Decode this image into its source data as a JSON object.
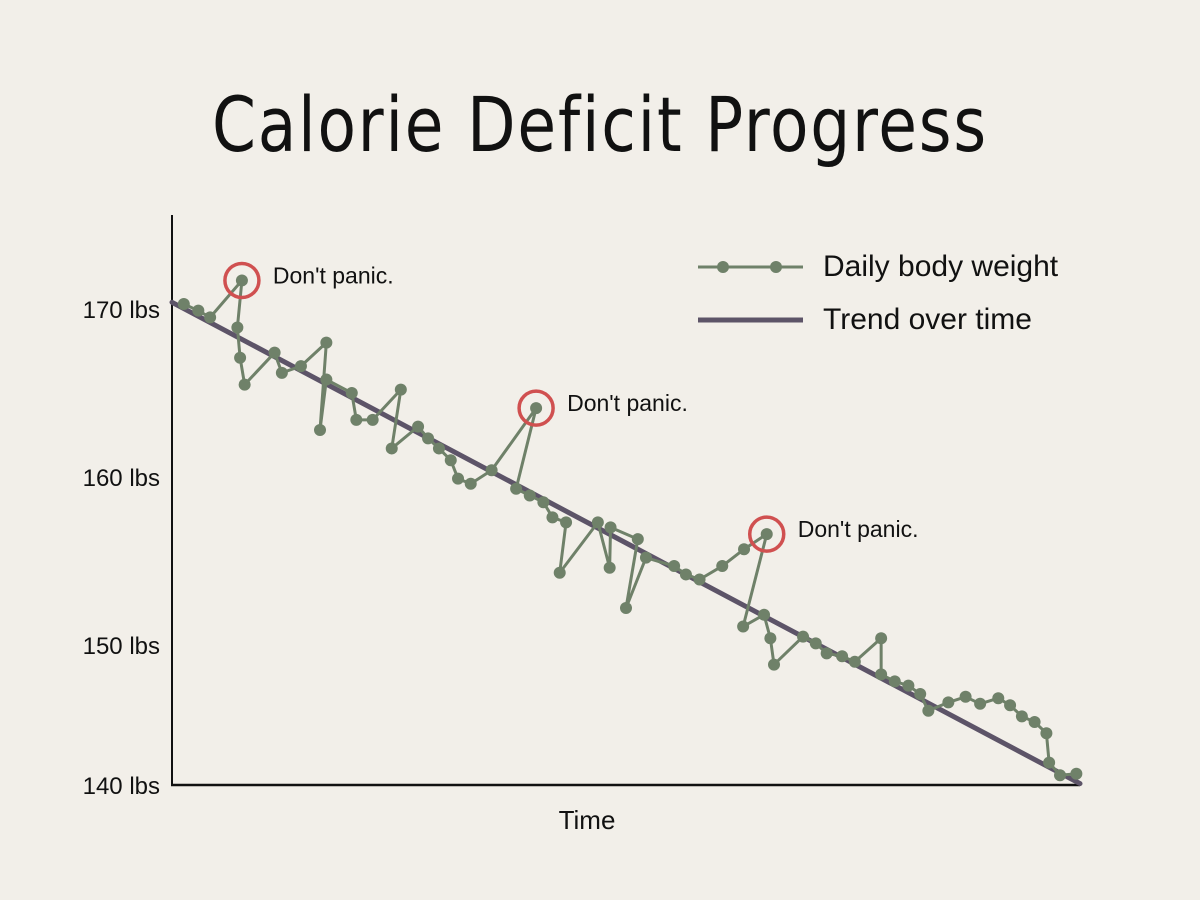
{
  "chart_data": {
    "type": "line",
    "title": "Calorie Deficit Progress",
    "xlabel": "Time",
    "ylabel": "",
    "x_tick_labels": [],
    "yticks": [
      {
        "value": 170,
        "label": "170 lbs"
      },
      {
        "value": 160,
        "label": "160 lbs"
      },
      {
        "value": 150,
        "label": "150 lbs"
      },
      {
        "value": 140,
        "label": "140 lbs"
      }
    ],
    "xlim": [
      0,
      100
    ],
    "grid": false,
    "legend_position": "top-right",
    "colors": {
      "background": "#f2efe9",
      "daily": "#6f8169",
      "trend": "#5d5468",
      "highlight": "#d05050"
    },
    "series": [
      {
        "name": "Daily body weight",
        "style": "line-with-markers",
        "x": [
          1.3,
          2.9,
          4.2,
          7.7,
          7.2,
          7.5,
          8.0,
          11.3,
          12.1,
          14.2,
          17.0,
          16.3,
          17.0,
          19.8,
          20.3,
          22.1,
          25.2,
          24.2,
          27.1,
          28.2,
          29.4,
          30.7,
          31.5,
          32.9,
          35.2,
          40.1,
          37.9,
          39.4,
          40.9,
          41.9,
          43.4,
          42.7,
          46.9,
          48.2,
          48.3,
          51.3,
          50.0,
          52.2,
          55.3,
          56.6,
          58.1,
          60.6,
          63.0,
          65.5,
          62.9,
          65.2,
          65.9,
          66.3,
          69.5,
          70.9,
          72.1,
          73.8,
          75.2,
          78.1,
          78.1,
          79.6,
          81.1,
          82.4,
          83.3,
          85.5,
          87.4,
          89.0,
          91.0,
          92.3,
          93.6,
          95.0,
          96.3,
          96.6,
          97.8,
          99.6
        ],
        "y": [
          170.3,
          169.9,
          169.5,
          171.7,
          168.9,
          167.1,
          165.5,
          167.4,
          166.2,
          166.6,
          168.0,
          162.8,
          165.8,
          165.0,
          163.4,
          163.4,
          165.2,
          161.7,
          163.0,
          162.3,
          161.7,
          161.0,
          159.9,
          159.6,
          160.4,
          164.1,
          159.3,
          158.9,
          158.5,
          157.6,
          157.3,
          154.3,
          157.3,
          154.6,
          157.0,
          156.3,
          152.2,
          155.2,
          154.7,
          154.2,
          153.9,
          154.7,
          155.7,
          156.6,
          151.1,
          151.8,
          150.4,
          148.6,
          150.5,
          150.1,
          149.4,
          149.2,
          148.8,
          150.4,
          147.9,
          147.4,
          147.1,
          146.5,
          145.3,
          145.9,
          146.3,
          145.8,
          146.2,
          145.7,
          144.9,
          144.5,
          143.7,
          141.6,
          140.7,
          140.8
        ]
      },
      {
        "name": "Trend over time",
        "style": "line",
        "x": [
          0,
          100
        ],
        "y": [
          170.4,
          140.1
        ]
      }
    ],
    "annotations": [
      {
        "point_index": 3,
        "text": "Don't panic."
      },
      {
        "point_index": 25,
        "text": "Don't panic."
      },
      {
        "point_index": 43,
        "text": "Don't panic."
      }
    ]
  }
}
